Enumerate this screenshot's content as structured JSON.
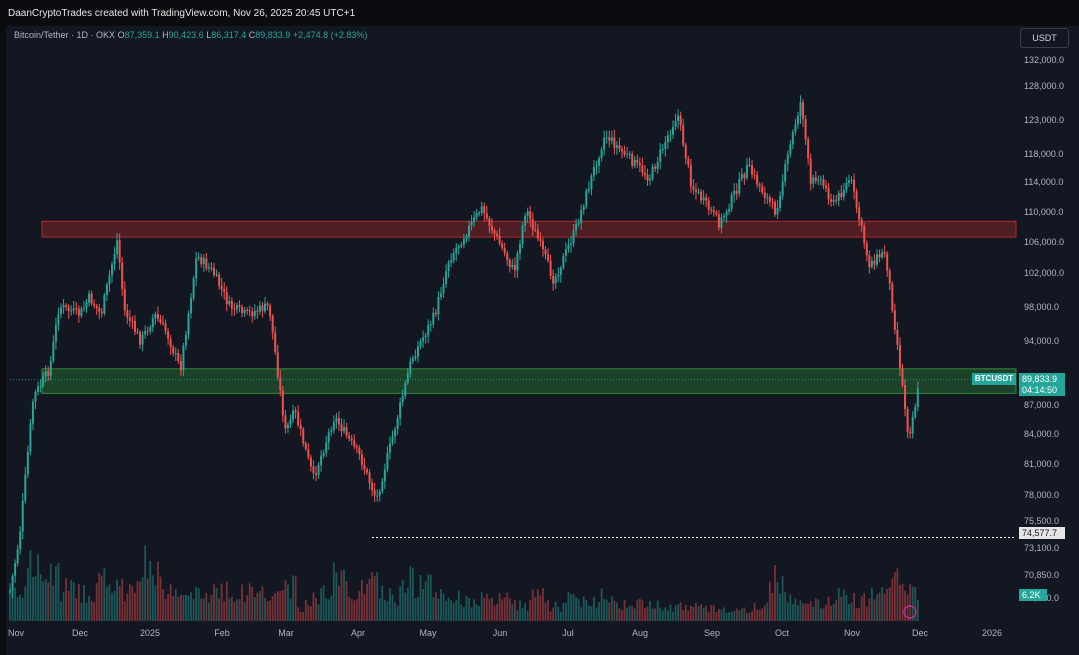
{
  "header": {
    "credit": "DaanCryptoTrades created with TradingView.com, Nov 26, 2025 20:45 UTC+1"
  },
  "symbol_bar": {
    "name": "Bitcoin/Tether · 1D · OKX",
    "open_label": "O",
    "open": "87,359.1",
    "high_label": "H",
    "high": "90,423.6",
    "low_label": "L",
    "low": "86,317.4",
    "close_label": "C",
    "close": "89,833.9",
    "change": "+2,474.8 (+2.83%)"
  },
  "currency_button": "USDT",
  "price_labels": {
    "symbol": "BTCUSDT",
    "last_price": "89,833.9",
    "countdown": "04:14:50",
    "low_marker": "74,577.7",
    "volume": "6.2K"
  },
  "colors": {
    "up": "#26a69a",
    "down": "#ef5350",
    "background": "#131722",
    "resistance_zone": "#b22a2a",
    "support_zone": "#2f8a36"
  },
  "chart_data": {
    "type": "candlestick",
    "interval": "1D",
    "exchange": "OKX",
    "y_ticks": [
      "132,000.0",
      "128,000.0",
      "123,000.0",
      "118,000.0",
      "114,000.0",
      "110,000.0",
      "106,000.0",
      "102,000.0",
      "98,000.0",
      "94,000.0",
      "87,000.0",
      "84,000.0",
      "81,000.0",
      "78,000.0",
      "75,500.0",
      "73,100.0",
      "70,850.0",
      "68,650.0"
    ],
    "x_ticks": [
      "Nov",
      "Dec",
      "2025",
      "Feb",
      "Mar",
      "Apr",
      "May",
      "Jun",
      "Jul",
      "Aug",
      "Sep",
      "Oct",
      "Nov",
      "Dec",
      "2026"
    ],
    "x_range": [
      "2024-11-01",
      "2026-01-06"
    ],
    "y_range": [
      67500,
      133500
    ],
    "price_scale": "log",
    "zones": [
      {
        "type": "resistance",
        "low": 106300,
        "high": 108300
      },
      {
        "type": "support",
        "low": 88400,
        "high": 91000
      }
    ],
    "low_line": 74577.7,
    "last_price": 89833.9,
    "series": [
      {
        "dates": [
          "2024-11-01",
          "2024-11-05",
          "2024-11-11",
          "2024-11-18",
          "2024-11-22",
          "2024-12-01",
          "2024-12-05",
          "2024-12-10",
          "2024-12-17",
          "2024-12-20",
          "2024-12-27",
          "2025-01-02",
          "2025-01-07",
          "2025-01-13",
          "2025-01-20",
          "2025-01-27",
          "2025-02-03",
          "2025-02-10",
          "2025-02-20",
          "2025-02-27",
          "2025-03-03",
          "2025-03-11",
          "2025-03-20",
          "2025-03-31",
          "2025-04-07",
          "2025-04-15",
          "2025-04-22",
          "2025-05-02",
          "2025-05-08",
          "2025-05-22",
          "2025-06-05",
          "2025-06-10",
          "2025-06-22",
          "2025-07-01",
          "2025-07-10",
          "2025-07-14",
          "2025-07-20",
          "2025-08-02",
          "2025-08-14",
          "2025-08-20",
          "2025-09-01",
          "2025-09-13",
          "2025-09-25",
          "2025-10-03",
          "2025-10-06",
          "2025-10-10",
          "2025-10-13",
          "2025-10-20",
          "2025-10-27",
          "2025-11-04",
          "2025-11-11",
          "2025-11-17",
          "2025-11-21",
          "2025-11-26"
        ],
        "closes": [
          70000,
          74500,
          88000,
          91000,
          98000,
          97000,
          99000,
          97000,
          106000,
          97500,
          94000,
          97000,
          95000,
          91000,
          104000,
          102000,
          98000,
          97000,
          98000,
          84500,
          86500,
          80000,
          86000,
          82000,
          78000,
          85000,
          92000,
          97000,
          103500,
          110000,
          102000,
          110000,
          101000,
          107000,
          116000,
          120000,
          118000,
          114000,
          123000,
          113000,
          108000,
          115500,
          109500,
          121000,
          125000,
          113000,
          114500,
          110500,
          114000,
          103000,
          104500,
          92000,
          84000,
          89833.9
        ]
      }
    ],
    "volume": {
      "values": [
        24,
        34,
        30,
        21,
        19,
        27,
        20,
        26,
        38,
        18,
        16,
        17,
        22,
        18,
        20,
        16,
        22,
        10,
        18,
        28,
        20,
        25,
        17,
        27,
        23,
        18,
        15,
        14,
        13,
        14,
        11,
        16,
        10,
        15,
        13,
        18,
        12,
        11,
        12,
        10,
        9,
        8,
        8,
        7,
        9,
        30,
        15,
        13,
        12,
        17,
        14,
        23,
        33,
        19
      ],
      "display_max": 60
    }
  }
}
